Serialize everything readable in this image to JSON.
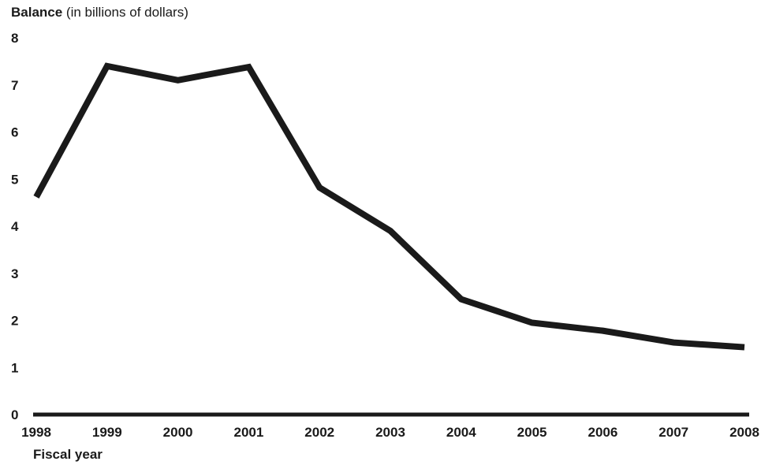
{
  "chart_data": {
    "type": "line",
    "ylabel_bold": "Balance",
    "ylabel_rest": " (in billions of dollars)",
    "xlabel": "Fiscal year",
    "x": [
      "1998",
      "1999",
      "2000",
      "2001",
      "2002",
      "2003",
      "2004",
      "2005",
      "2006",
      "2007",
      "2008"
    ],
    "series": [
      {
        "values": [
          4.62,
          7.4,
          7.1,
          7.38,
          4.82,
          3.9,
          2.45,
          1.95,
          1.78,
          1.53,
          1.43
        ]
      }
    ],
    "ylim": [
      0,
      8
    ],
    "yticks": [
      "0",
      "1",
      "2",
      "3",
      "4",
      "5",
      "6",
      "7",
      "8"
    ],
    "grid": false,
    "line_color": "#1a1a1a"
  }
}
